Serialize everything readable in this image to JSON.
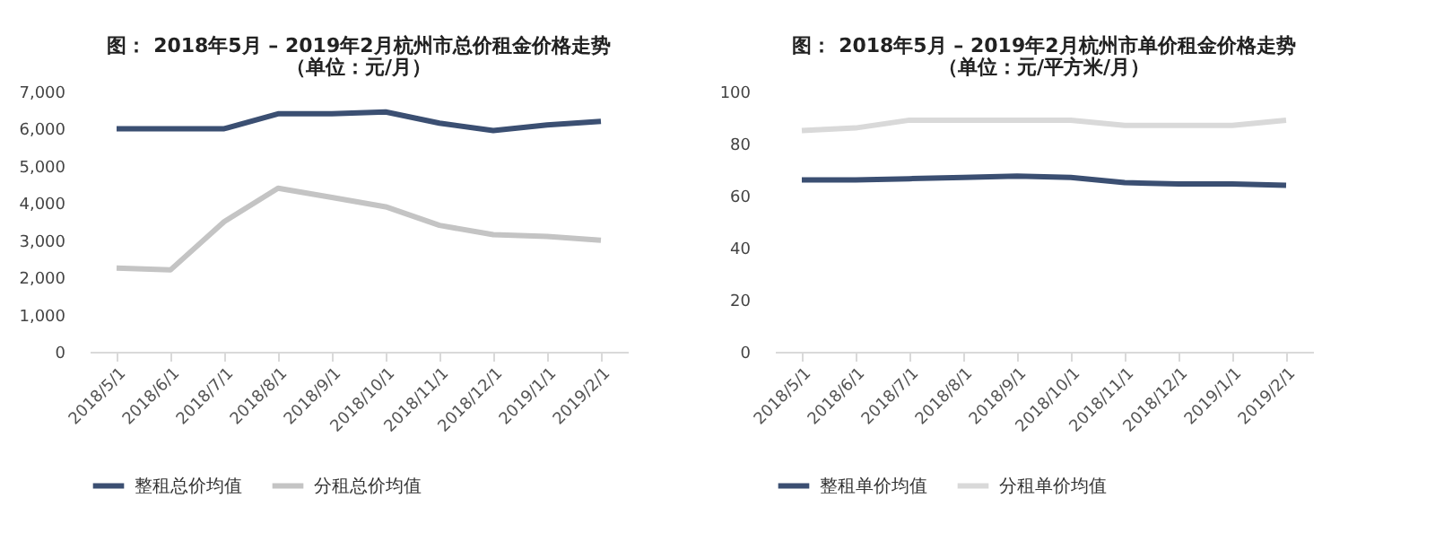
{
  "chart_data": [
    {
      "type": "line",
      "title": "图： 2018年5月 – 2019年2月杭州市总价租金价格走势",
      "subtitle": "（单位：元/月）",
      "categories": [
        "2018/5/1",
        "2018/6/1",
        "2018/7/1",
        "2018/8/1",
        "2018/9/1",
        "2018/10/1",
        "2018/11/1",
        "2018/12/1",
        "2019/1/1",
        "2019/2/1"
      ],
      "series": [
        {
          "name": "整租总价均值",
          "color": "#3b4f72",
          "values": [
            6000,
            6000,
            6000,
            6400,
            6400,
            6450,
            6150,
            5950,
            6100,
            6200
          ]
        },
        {
          "name": "分租总价均值",
          "color": "#c4c4c4",
          "values": [
            2250,
            2200,
            3500,
            4400,
            4150,
            3900,
            3400,
            3150,
            3100,
            3000
          ]
        }
      ],
      "ylim": [
        0,
        7000
      ],
      "yticks": [
        0,
        {
          "value": 1000,
          "label": "1,000"
        },
        {
          "value": 2000,
          "label": "2,000"
        },
        {
          "value": 3000,
          "label": "3,000"
        },
        {
          "value": 4000,
          "label": "4,000"
        },
        {
          "value": 5000,
          "label": "5,000"
        },
        {
          "value": 6000,
          "label": "6,000"
        },
        {
          "value": 7000,
          "label": "7,000"
        }
      ],
      "grid": false,
      "legend": "bottom",
      "marker": "none",
      "line_style": "solid"
    },
    {
      "type": "line",
      "title": "图： 2018年5月 – 2019年2月杭州市单价租金价格走势",
      "subtitle": "（单位：元/平方米/月）",
      "categories": [
        "2018/5/1",
        "2018/6/1",
        "2018/7/1",
        "2018/8/1",
        "2018/9/1",
        "2018/10/1",
        "2018/11/1",
        "2018/12/1",
        "2019/1/1",
        "2019/2/1"
      ],
      "series": [
        {
          "name": "整租单价均值",
          "color": "#3b4f72",
          "values": [
            66,
            66,
            66.5,
            67,
            67.5,
            67,
            65,
            64.5,
            64.5,
            64
          ]
        },
        {
          "name": "分租单价均值",
          "color": "#d9d9d9",
          "values": [
            85,
            86,
            89,
            89,
            89,
            89,
            87,
            87,
            87,
            89
          ]
        }
      ],
      "ylim": [
        0,
        100
      ],
      "yticks": [
        0,
        20,
        40,
        60,
        80,
        100
      ],
      "grid": false,
      "legend": "bottom",
      "marker": "none",
      "line_style": "solid"
    }
  ]
}
